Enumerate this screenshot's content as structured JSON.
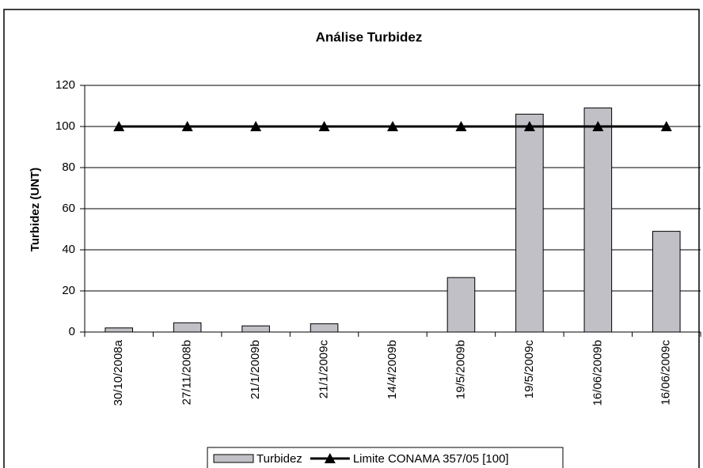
{
  "chart_data": {
    "type": "bar",
    "title": "Análise Turbidez",
    "y_label": "Turbidez (UNT)",
    "categories": [
      "30/10/2008a",
      "27/11/2008b",
      "21/1/2009b",
      "21/1/2009c",
      "14/4/2009b",
      "19/5/2009b",
      "19/5/2009c",
      "16/06/2009b",
      "16/06/2009c"
    ],
    "series": [
      {
        "name": "Turbidez",
        "type": "bar",
        "color": "#c0c0c6",
        "values": [
          2,
          4.5,
          3,
          4,
          0,
          26.5,
          106,
          109,
          49
        ]
      },
      {
        "name": "Limite CONAMA 357/05 [100]",
        "type": "line",
        "color": "#000000",
        "values": [
          100,
          100,
          100,
          100,
          100,
          100,
          100,
          100,
          100
        ]
      }
    ],
    "ylim": [
      0,
      120
    ],
    "yticks": [
      0,
      20,
      40,
      60,
      80,
      100,
      120
    ],
    "grid": true,
    "legend": "bottom"
  }
}
